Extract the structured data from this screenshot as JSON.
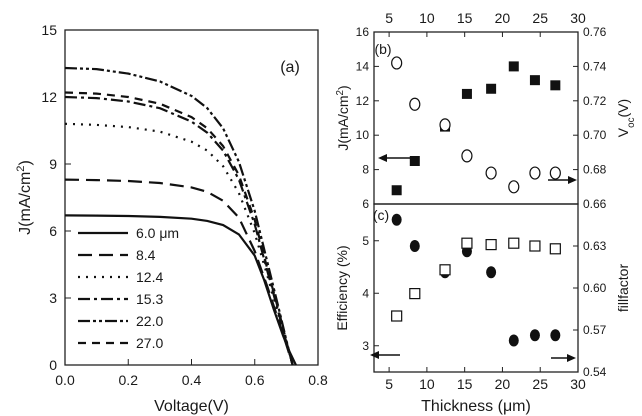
{
  "chart_data": [
    {
      "panel": "(a)",
      "type": "line",
      "xlabel": "Voltage(V)",
      "ylabel": "J(mA/cm²)",
      "xlim": [
        0.0,
        0.8
      ],
      "ylim": [
        0,
        15
      ],
      "xticks": [
        "0.0",
        "0.2",
        "0.4",
        "0.6",
        "0.8"
      ],
      "yticks": [
        "0",
        "3",
        "6",
        "9",
        "12",
        "15"
      ],
      "legend_position": "bottom-left",
      "series": [
        {
          "name": "6.0 μm",
          "dash": "solid",
          "jsc": 6.7,
          "voc": 0.73,
          "points": [
            [
              0.0,
              6.7
            ],
            [
              0.1,
              6.69
            ],
            [
              0.2,
              6.67
            ],
            [
              0.3,
              6.63
            ],
            [
              0.4,
              6.55
            ],
            [
              0.45,
              6.45
            ],
            [
              0.5,
              6.27
            ],
            [
              0.55,
              5.85
            ],
            [
              0.6,
              4.9
            ],
            [
              0.63,
              3.8
            ],
            [
              0.66,
              2.5
            ],
            [
              0.69,
              1.3
            ],
            [
              0.71,
              0.6
            ],
            [
              0.73,
              0.0
            ]
          ]
        },
        {
          "name": "8.4",
          "dash": "long-dash",
          "jsc": 8.3,
          "voc": 0.72,
          "points": [
            [
              0.0,
              8.3
            ],
            [
              0.1,
              8.28
            ],
            [
              0.2,
              8.24
            ],
            [
              0.3,
              8.15
            ],
            [
              0.4,
              7.95
            ],
            [
              0.45,
              7.75
            ],
            [
              0.5,
              7.35
            ],
            [
              0.55,
              6.6
            ],
            [
              0.6,
              5.1
            ],
            [
              0.64,
              3.5
            ],
            [
              0.68,
              1.8
            ],
            [
              0.7,
              0.9
            ],
            [
              0.72,
              0.0
            ]
          ]
        },
        {
          "name": "12.4",
          "dash": "dotted",
          "jsc": 10.8,
          "voc": 0.72,
          "points": [
            [
              0.0,
              10.8
            ],
            [
              0.1,
              10.75
            ],
            [
              0.2,
              10.65
            ],
            [
              0.3,
              10.45
            ],
            [
              0.4,
              10.0
            ],
            [
              0.45,
              9.6
            ],
            [
              0.5,
              8.9
            ],
            [
              0.55,
              7.7
            ],
            [
              0.6,
              5.9
            ],
            [
              0.64,
              4.0
            ],
            [
              0.68,
              2.0
            ],
            [
              0.7,
              1.0
            ],
            [
              0.72,
              0.0
            ]
          ]
        },
        {
          "name": "15.3",
          "dash": "dash-dot",
          "jsc": 12.0,
          "voc": 0.72,
          "points": [
            [
              0.0,
              12.0
            ],
            [
              0.1,
              11.95
            ],
            [
              0.2,
              11.8
            ],
            [
              0.3,
              11.5
            ],
            [
              0.4,
              10.9
            ],
            [
              0.45,
              10.4
            ],
            [
              0.5,
              9.6
            ],
            [
              0.55,
              8.3
            ],
            [
              0.6,
              6.3
            ],
            [
              0.64,
              4.2
            ],
            [
              0.68,
              2.1
            ],
            [
              0.7,
              1.0
            ],
            [
              0.72,
              0.0
            ]
          ]
        },
        {
          "name": "22.0",
          "dash": "dash-dot-dot",
          "jsc": 13.3,
          "voc": 0.72,
          "points": [
            [
              0.0,
              13.3
            ],
            [
              0.1,
              13.25
            ],
            [
              0.2,
              13.05
            ],
            [
              0.3,
              12.7
            ],
            [
              0.4,
              12.05
            ],
            [
              0.45,
              11.5
            ],
            [
              0.5,
              10.6
            ],
            [
              0.55,
              9.1
            ],
            [
              0.6,
              6.9
            ],
            [
              0.64,
              4.6
            ],
            [
              0.68,
              2.3
            ],
            [
              0.7,
              1.1
            ],
            [
              0.72,
              0.0
            ]
          ]
        },
        {
          "name": "27.0",
          "dash": "short-dash",
          "jsc": 12.2,
          "voc": 0.72,
          "points": [
            [
              0.0,
              12.2
            ],
            [
              0.1,
              12.15
            ],
            [
              0.2,
              12.0
            ],
            [
              0.3,
              11.7
            ],
            [
              0.4,
              11.1
            ],
            [
              0.45,
              10.6
            ],
            [
              0.5,
              9.8
            ],
            [
              0.55,
              8.5
            ],
            [
              0.6,
              6.5
            ],
            [
              0.64,
              4.3
            ],
            [
              0.68,
              2.2
            ],
            [
              0.7,
              1.05
            ],
            [
              0.72,
              0.0
            ]
          ]
        }
      ]
    },
    {
      "panel": "(b)",
      "type": "scatter",
      "xlabel": "",
      "ylabel_left": "J(mA/cm²)",
      "ylabel_right": "V_oc(V)",
      "x_top_ticks": [
        "5",
        "10",
        "15",
        "20",
        "25",
        "30"
      ],
      "xlim": [
        3,
        30
      ],
      "ylim_left": [
        6,
        16
      ],
      "ylim_right": [
        0.66,
        0.76
      ],
      "yticks_left": [
        "6",
        "8",
        "10",
        "12",
        "14",
        "16"
      ],
      "yticks_right": [
        "0.66",
        "0.68",
        "0.70",
        "0.72",
        "0.74",
        "0.76"
      ],
      "series": [
        {
          "name": "J",
          "marker": "filled-square",
          "axis": "left",
          "x": [
            6.0,
            8.4,
            12.4,
            15.3,
            18.5,
            21.5,
            24.3,
            27.0
          ],
          "y": [
            6.8,
            8.5,
            10.5,
            12.4,
            12.7,
            14.0,
            13.2,
            12.9
          ]
        },
        {
          "name": "Voc",
          "marker": "open-circle",
          "axis": "right",
          "x": [
            6.0,
            8.4,
            12.4,
            15.3,
            18.5,
            21.5,
            24.3,
            27.0
          ],
          "y": [
            0.742,
            0.718,
            0.706,
            0.688,
            0.678,
            0.67,
            0.678,
            0.678
          ]
        }
      ],
      "arrows": [
        "left-axis",
        "right-axis"
      ]
    },
    {
      "panel": "(c)",
      "type": "scatter",
      "xlabel": "Thickness (μm)",
      "ylabel_left": "Efficiency (%)",
      "ylabel_right": "fillfactor",
      "xlim": [
        3,
        30
      ],
      "xticks": [
        "5",
        "10",
        "15",
        "20",
        "25",
        "30"
      ],
      "ylim_left": [
        2.5,
        5.7
      ],
      "ylim_right": [
        0.54,
        0.66
      ],
      "yticks_left": [
        "3",
        "4",
        "5"
      ],
      "yticks_right": [
        "0.54",
        "0.57",
        "0.60",
        "0.63"
      ],
      "series": [
        {
          "name": "Efficiency",
          "marker": "filled-circle",
          "axis": "left",
          "x": [
            6.0,
            8.4,
            12.4,
            15.3,
            18.5,
            21.5,
            24.3,
            27.0
          ],
          "y": [
            5.4,
            4.9,
            4.4,
            4.8,
            4.4,
            3.1,
            3.2,
            3.2
          ]
        },
        {
          "name": "Fillfactor",
          "marker": "open-square",
          "axis": "right",
          "x": [
            6.0,
            8.4,
            12.4,
            15.3,
            18.5,
            21.5,
            24.3,
            27.0
          ],
          "y": [
            0.58,
            0.596,
            0.613,
            0.632,
            0.631,
            0.632,
            0.63,
            0.628
          ]
        }
      ],
      "arrows": [
        "left-axis",
        "right-axis"
      ]
    }
  ]
}
